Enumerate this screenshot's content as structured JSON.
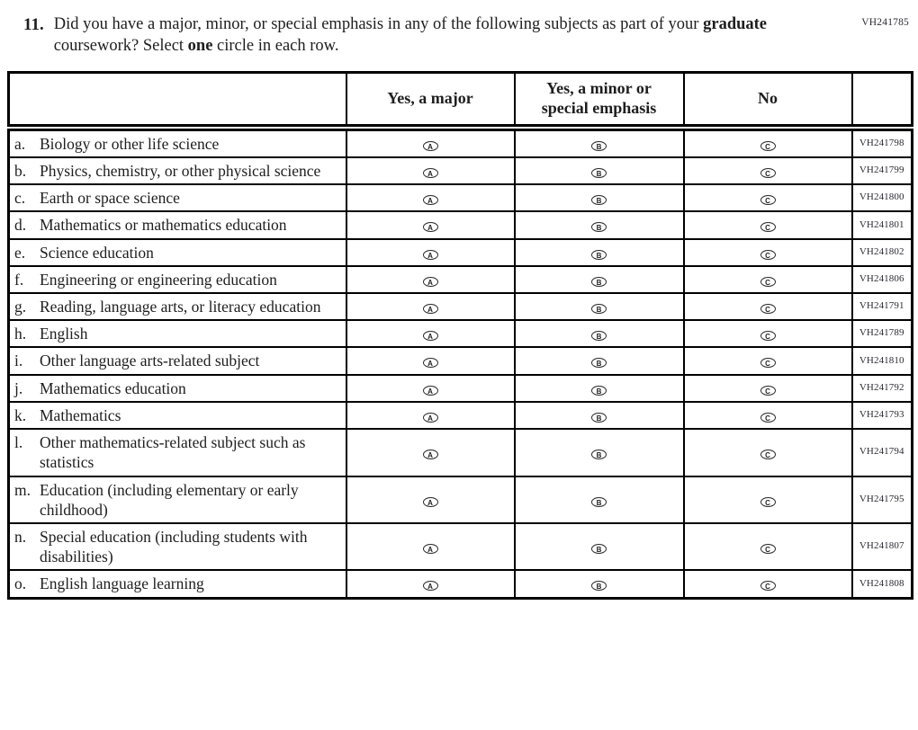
{
  "page": {
    "form_code": "VH241785"
  },
  "question": {
    "number": "11.",
    "text_1": "Did you have a major, minor, or special emphasis in any of the following subjects as part of your ",
    "bold_graduate": "graduate",
    "text_2": " coursework? Select ",
    "bold_one": "one",
    "text_3": " circle in each row."
  },
  "table": {
    "headers": {
      "subject": "",
      "major": "Yes, a major",
      "minor": "Yes, a minor or special emphasis",
      "no": "No",
      "code": ""
    },
    "options": [
      "A",
      "B",
      "C"
    ],
    "rows": [
      {
        "letter": "a.",
        "label": "Biology or other life science",
        "code": "VH241798"
      },
      {
        "letter": "b.",
        "label": "Physics, chemistry, or other physical science",
        "code": "VH241799"
      },
      {
        "letter": "c.",
        "label": "Earth or space science",
        "code": "VH241800"
      },
      {
        "letter": "d.",
        "label": "Mathematics or mathematics education",
        "code": "VH241801"
      },
      {
        "letter": "e.",
        "label": "Science education",
        "code": "VH241802"
      },
      {
        "letter": "f.",
        "label": "Engineering or engineering education",
        "code": "VH241806"
      },
      {
        "letter": "g.",
        "label": "Reading, language arts, or literacy education",
        "code": "VH241791"
      },
      {
        "letter": "h.",
        "label": "English",
        "code": "VH241789"
      },
      {
        "letter": "i.",
        "label": "Other language arts-related subject",
        "code": "VH241810"
      },
      {
        "letter": "j.",
        "label": "Mathematics education",
        "code": "VH241792"
      },
      {
        "letter": "k.",
        "label": "Mathematics",
        "code": "VH241793"
      },
      {
        "letter": "l.",
        "label": "Other mathematics-related subject such as statistics",
        "code": "VH241794"
      },
      {
        "letter": "m.",
        "label": "Education (including elementary or early childhood)",
        "code": "VH241795"
      },
      {
        "letter": "n.",
        "label": "Special education (including students with disabilities)",
        "code": "VH241807"
      },
      {
        "letter": "o.",
        "label": "English language learning",
        "code": "VH241808"
      }
    ]
  }
}
